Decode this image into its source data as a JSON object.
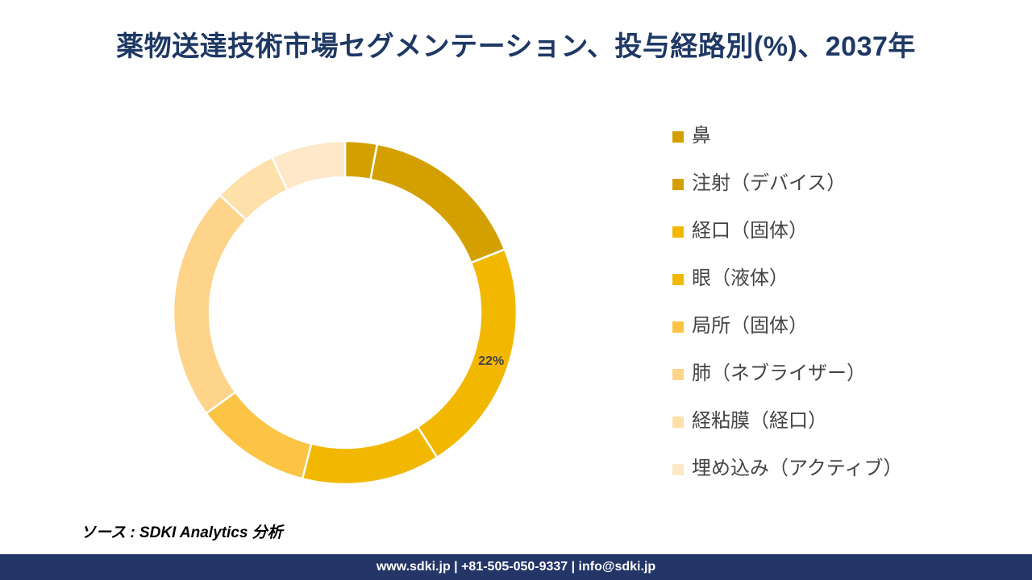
{
  "title": "薬物送達技術市場セグメンテーション、投与経路別(%)、2037年",
  "source": "ソース : SDKI Analytics 分析",
  "footer": "www.sdki.jp | +81-505-050-9337 | info@sdki.jp",
  "chart_data": {
    "type": "pie",
    "donut": true,
    "title": "薬物送達技術市場セグメンテーション、投与経路別(%)、2037年",
    "legend_position": "right",
    "slices": [
      {
        "label": "鼻",
        "value": 3,
        "color": "#d4a000"
      },
      {
        "label": "注射（デバイス）",
        "value": 16,
        "color": "#d4a000"
      },
      {
        "label": "経口（固体）",
        "value": 22,
        "color": "#f2b800",
        "data_label": "22%"
      },
      {
        "label": "眼（液体）",
        "value": 13,
        "color": "#f2b800"
      },
      {
        "label": "局所（固体）",
        "value": 11,
        "color": "#fbc444"
      },
      {
        "label": "肺（ネブライザー）",
        "value": 22,
        "color": "#fdd48a"
      },
      {
        "label": "経粘膜（経口）",
        "value": 6,
        "color": "#fde0aa"
      },
      {
        "label": "埋め込み（アクティブ）",
        "value": 7,
        "color": "#fee8c8"
      }
    ]
  }
}
